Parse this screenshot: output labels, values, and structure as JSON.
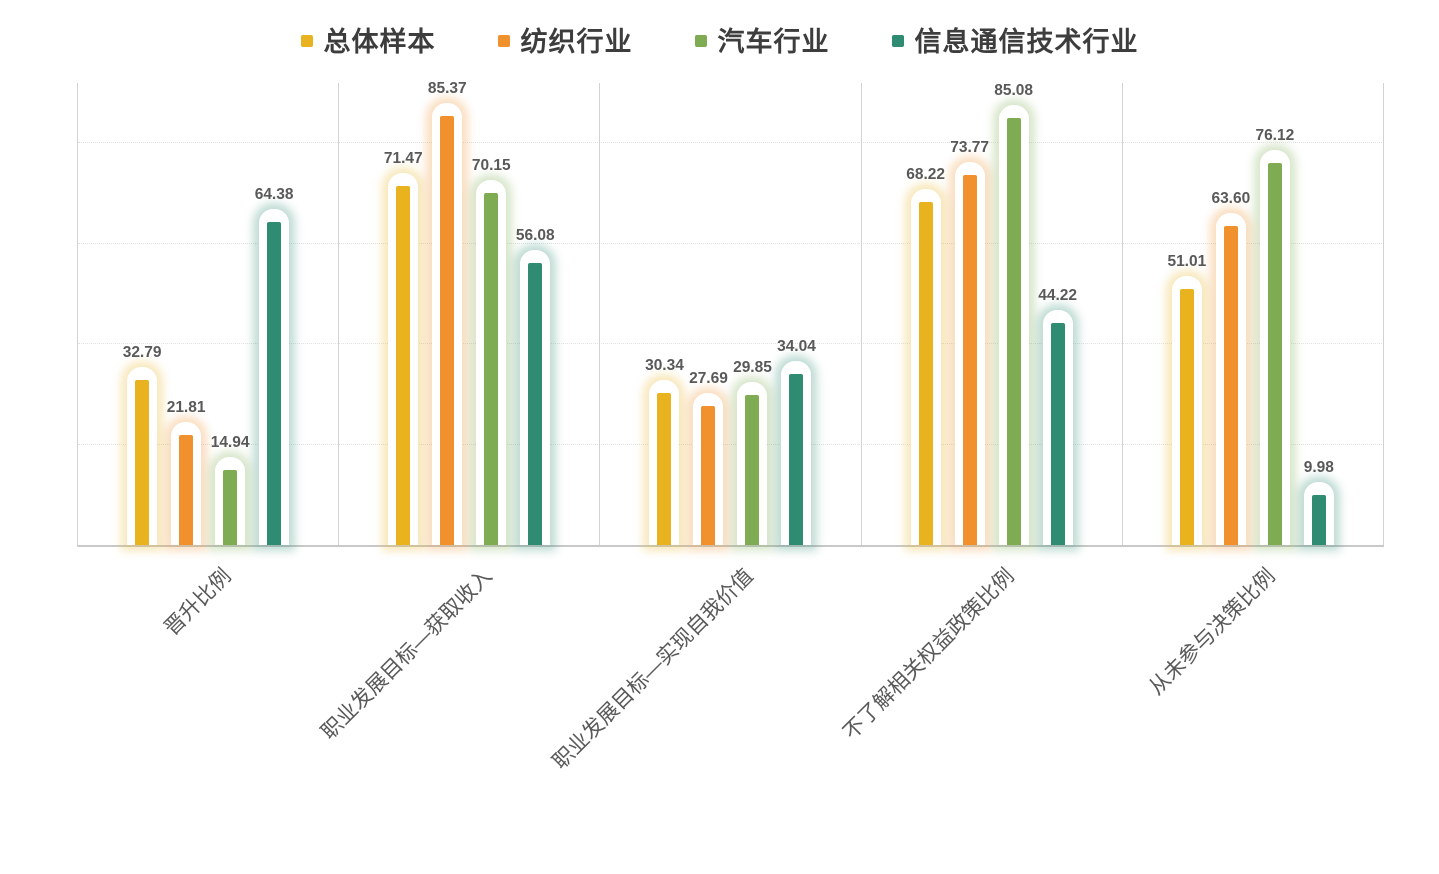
{
  "chart_data": {
    "type": "bar",
    "title": "",
    "xlabel": "",
    "ylabel": "",
    "categories": [
      "晋升比例",
      "职业发展目标—获取收入",
      "职业发展目标—实现自我价值",
      "不了解相关权益政策比例",
      "从未参与决策比例"
    ],
    "series": [
      {
        "name": "总体样本",
        "color": "#E9B320",
        "glow_tint": "rgba(233,179,32,0.30)",
        "values": [
          32.79,
          71.47,
          30.34,
          68.22,
          51.01
        ],
        "labels": [
          "32.79",
          "71.47",
          "30.34",
          "68.22",
          "51.01"
        ]
      },
      {
        "name": "纺织行业",
        "color": "#F0912D",
        "glow_tint": "rgba(240,145,45,0.30)",
        "values": [
          21.81,
          85.37,
          27.69,
          73.77,
          63.6
        ],
        "labels": [
          "21.81",
          "85.37",
          "27.69",
          "73.77",
          "63.60"
        ]
      },
      {
        "name": "汽车行业",
        "color": "#7FAC53",
        "glow_tint": "rgba(127,172,83,0.30)",
        "values": [
          14.94,
          70.15,
          29.85,
          85.08,
          76.12
        ],
        "labels": [
          "14.94",
          "70.15",
          "29.85",
          "85.08",
          "76.12"
        ]
      },
      {
        "name": "信息通信技术行业",
        "color": "#2F8C72",
        "glow_tint": "rgba(47,140,114,0.30)",
        "values": [
          64.38,
          56.08,
          34.04,
          44.22,
          9.98
        ],
        "labels": [
          "64.38",
          "56.08",
          "34.04",
          "44.22",
          "9.98"
        ]
      }
    ],
    "ylim": [
      0,
      92
    ],
    "gridline_values": [
      20,
      40,
      60,
      80
    ],
    "grid": "dotted-horizontal",
    "legend_position": "top",
    "value_labels": true
  },
  "colors": {
    "value_label_text": "#595959",
    "legend_text": "#3D3D3D",
    "axis_line": "#C9C9C9",
    "panel_border": "#D3D3D3",
    "gridline": "#E2E2E2"
  }
}
